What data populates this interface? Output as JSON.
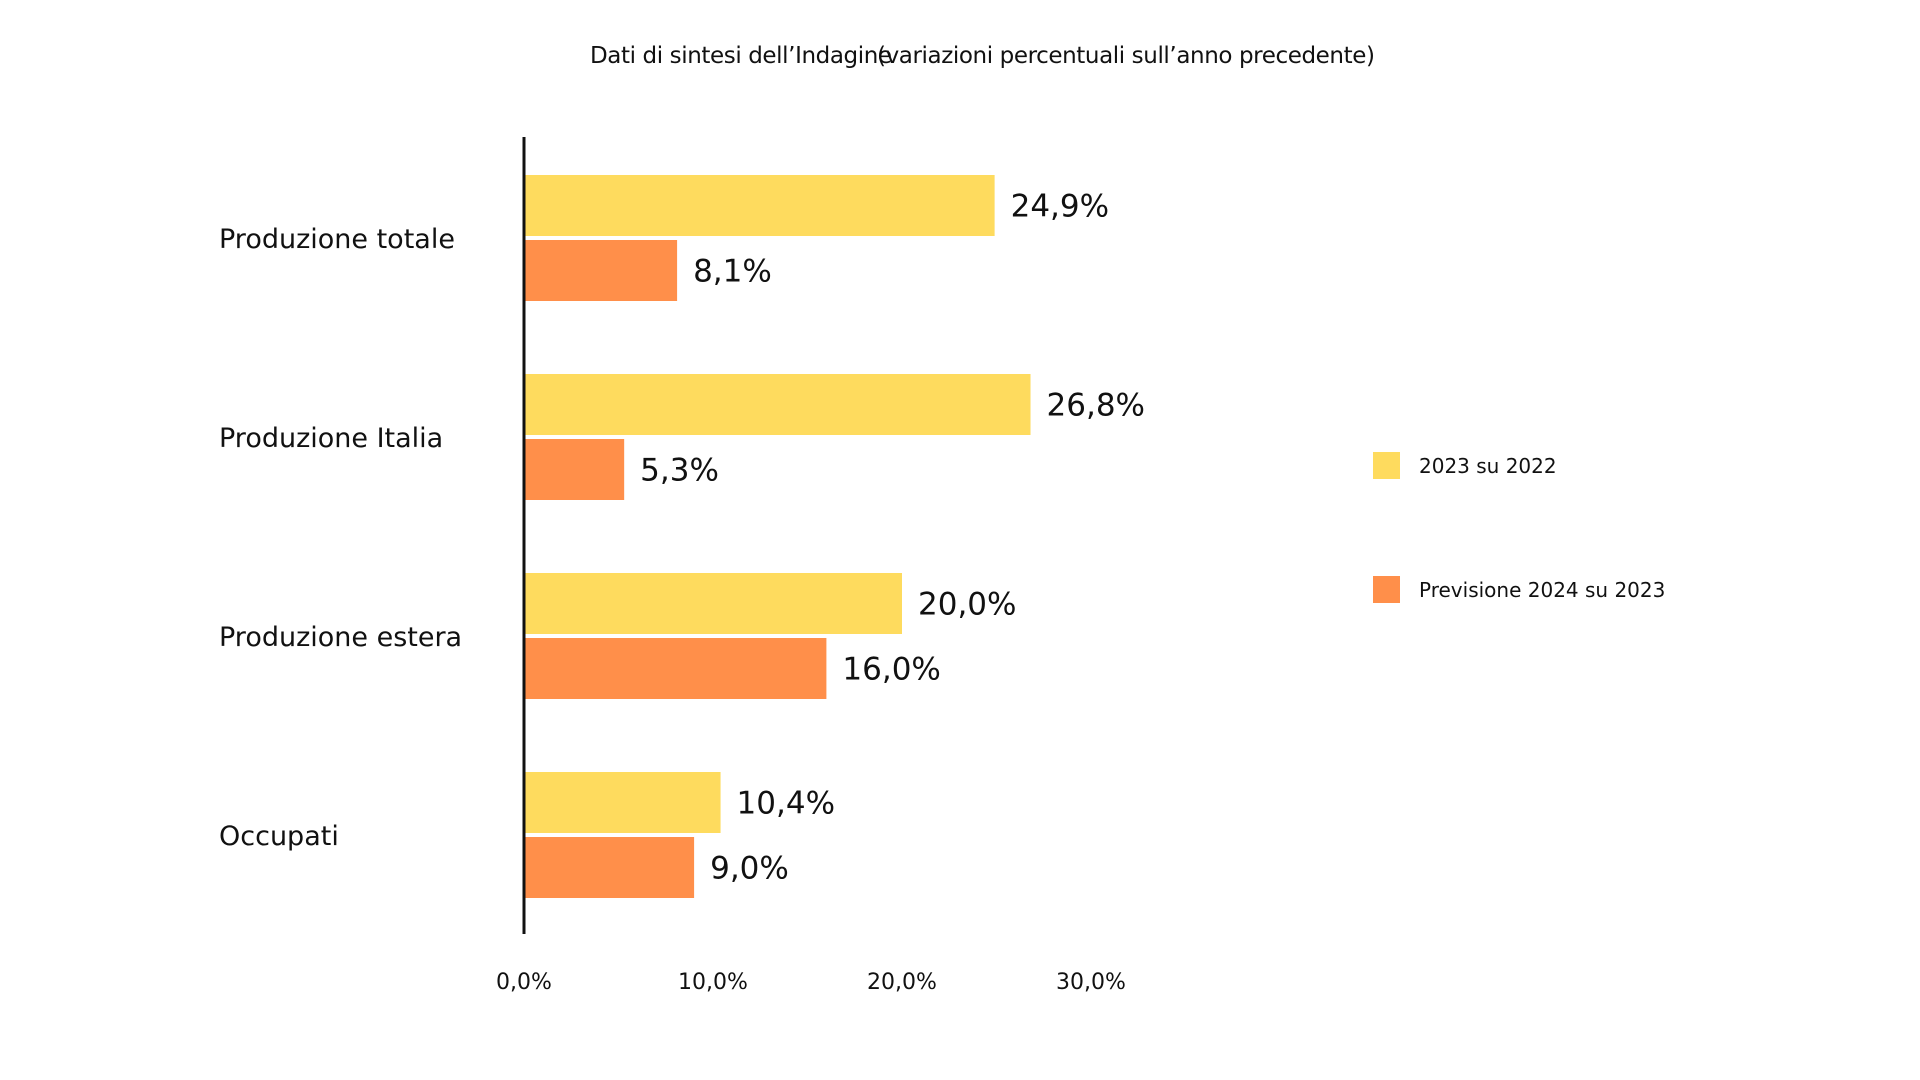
{
  "chart_data": {
    "type": "bar",
    "orientation": "horizontal",
    "title": "Dati di sintesi dell’Indagine",
    "subtitle": "(variazioni percentuali sull’anno precedente)",
    "categories": [
      "Produzione totale",
      "Produzione Italia",
      "Produzione estera",
      "Occupati"
    ],
    "series": [
      {
        "name": "2023 su 2022",
        "color": "#FEDB5E",
        "values": [
          24.9,
          26.8,
          20.0,
          10.4
        ],
        "labels": [
          "24,9%",
          "26,8%",
          "20,0%",
          "10,4%"
        ]
      },
      {
        "name": "Previsione 2024 su 2023",
        "color": "#FF8F4A",
        "values": [
          8.1,
          5.3,
          16.0,
          9.0
        ],
        "labels": [
          "8,1%",
          "5,3%",
          "16,0%",
          "9,0%"
        ]
      }
    ],
    "xlim": [
      0,
      30
    ],
    "xticks": [
      0,
      10,
      20,
      30
    ],
    "xtick_labels": [
      "0,0%",
      "10,0%",
      "20,0%",
      "30,0%"
    ],
    "grid": false,
    "legend_position": "right"
  }
}
